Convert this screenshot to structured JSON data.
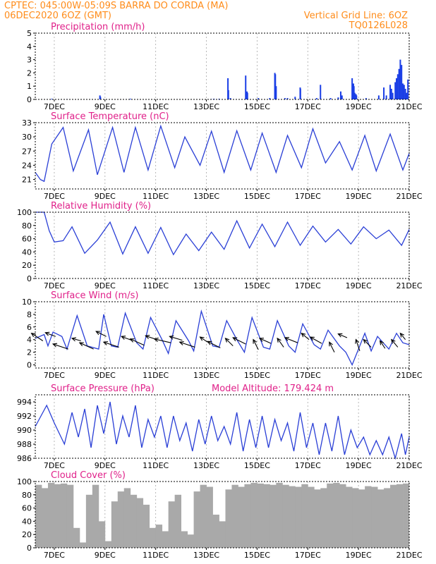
{
  "header": {
    "line1": "CPTEC:   045:00W-05:09S   BARRA DO CORDA (MA)",
    "line2_left": "06DEC2020 6OZ (GMT)",
    "line2_right": "Vertical Grid Line: 6OZ",
    "line3_right": "TQ0126L028"
  },
  "chart_data": [
    {
      "type": "bar",
      "title": "Precipitation (mm/h)",
      "ylim": [
        0,
        5
      ],
      "yticks": [
        0,
        1,
        2,
        3,
        4,
        5
      ],
      "xticks": [
        "7DEC",
        "9DEC",
        "11DEC",
        "13DEC",
        "15DEC",
        "17DEC",
        "19DEC",
        "21DEC"
      ],
      "xtick_days": [
        7,
        9,
        11,
        13,
        15,
        17,
        19,
        21
      ],
      "xrange_days": [
        6.25,
        21.0
      ],
      "color": "#1a3ee6",
      "x": [
        6.9,
        7.5,
        8.8,
        8.82,
        10.0,
        12.4,
        13.2,
        13.3,
        13.5,
        13.85,
        13.87,
        13.95,
        14.55,
        14.6,
        14.62,
        15.05,
        15.5,
        15.7,
        15.72,
        15.75,
        16.1,
        16.2,
        16.5,
        16.7,
        16.71,
        17.35,
        17.5,
        17.9,
        18.2,
        18.3,
        18.35,
        18.75,
        18.8,
        18.82,
        18.85,
        18.9,
        18.92,
        19.3,
        19.8,
        20.0,
        20.1,
        20.25,
        20.3,
        20.35,
        20.45,
        20.5,
        20.55,
        20.6,
        20.65,
        20.7,
        20.75,
        20.8,
        20.85,
        20.9,
        20.95
      ],
      "values": [
        0.05,
        0.03,
        0.3,
        0.2,
        0.05,
        0.02,
        0.03,
        0.05,
        0.05,
        1.6,
        0.7,
        0.1,
        1.8,
        0.6,
        0.5,
        0.1,
        0.1,
        2.0,
        1.9,
        1.0,
        0.1,
        0.1,
        0.2,
        0.9,
        0.8,
        0.1,
        1.1,
        0.1,
        0.15,
        0.6,
        0.3,
        1.6,
        1.2,
        1.0,
        0.5,
        0.4,
        0.3,
        0.1,
        0.3,
        0.9,
        0.3,
        1.1,
        0.8,
        0.5,
        1.3,
        1.6,
        1.9,
        2.3,
        3.0,
        2.6,
        1.2,
        1.1,
        0.8,
        0.5,
        1.5
      ]
    },
    {
      "type": "line",
      "title": "Surface Temperature (nC)",
      "ylim": [
        19.0,
        33.0
      ],
      "yticks": [
        21,
        24,
        27,
        30,
        33
      ],
      "xticks": [
        "7DEC",
        "9DEC",
        "11DEC",
        "13DEC",
        "15DEC",
        "17DEC",
        "19DEC",
        "21DEC"
      ],
      "xtick_days": [
        7,
        9,
        11,
        13,
        15,
        17,
        19,
        21
      ],
      "xrange_days": [
        6.25,
        21.0
      ],
      "color": "#2a3fd6",
      "x": [
        6.25,
        6.45,
        6.6,
        6.9,
        7.35,
        7.75,
        8.35,
        8.7,
        9.3,
        9.75,
        10.2,
        10.7,
        11.2,
        11.75,
        12.15,
        12.75,
        13.2,
        13.7,
        14.2,
        14.75,
        15.2,
        15.75,
        16.2,
        16.75,
        17.2,
        17.7,
        18.25,
        18.75,
        19.25,
        19.7,
        20.25,
        20.75,
        21.0
      ],
      "values": [
        22.5,
        21.0,
        20.6,
        28.5,
        32.0,
        22.8,
        31.5,
        22.0,
        32.0,
        22.5,
        32.0,
        23.0,
        32.3,
        23.5,
        30.0,
        24.0,
        31.2,
        22.5,
        31.3,
        23.0,
        30.8,
        22.5,
        30.3,
        23.5,
        31.7,
        24.5,
        29.0,
        23.0,
        30.3,
        22.8,
        30.6,
        23.0,
        26.5
      ]
    },
    {
      "type": "line",
      "title": "Relative Humidity (%)",
      "ylim": [
        0,
        100
      ],
      "yticks": [
        0,
        20,
        40,
        60,
        80,
        100
      ],
      "xticks": [
        "7DEC",
        "9DEC",
        "11DEC",
        "13DEC",
        "15DEC",
        "17DEC",
        "19DEC",
        "21DEC"
      ],
      "xtick_days": [
        7,
        9,
        11,
        13,
        15,
        17,
        19,
        21
      ],
      "xrange_days": [
        6.25,
        21.0
      ],
      "color": "#2a3fd6",
      "x": [
        6.25,
        6.6,
        6.8,
        7.0,
        7.35,
        7.7,
        8.2,
        8.7,
        9.2,
        9.7,
        10.2,
        10.7,
        11.2,
        11.7,
        12.2,
        12.7,
        13.2,
        13.7,
        14.2,
        14.7,
        15.2,
        15.7,
        16.2,
        16.7,
        17.2,
        17.7,
        18.2,
        18.7,
        19.2,
        19.7,
        20.2,
        20.7,
        21.0
      ],
      "values": [
        100,
        100,
        72,
        55,
        57,
        78,
        38,
        58,
        85,
        37,
        78,
        38,
        77,
        36,
        67,
        42,
        70,
        44,
        87,
        46,
        82,
        48,
        85,
        50,
        79,
        55,
        74,
        52,
        78,
        60,
        73,
        50,
        74
      ]
    },
    {
      "type": "line",
      "title": "Surface Wind (m/s)",
      "ylim": [
        -0.5,
        10
      ],
      "yticks": [
        0,
        2,
        4,
        6,
        8,
        10
      ],
      "xticks": [
        "7DEC",
        "9DEC",
        "11DEC",
        "13DEC",
        "15DEC",
        "17DEC",
        "19DEC",
        "21DEC"
      ],
      "xtick_days": [
        7,
        9,
        11,
        13,
        15,
        17,
        19,
        21
      ],
      "xrange_days": [
        6.25,
        21.0
      ],
      "color": "#2a3fd6",
      "x": [
        6.25,
        6.6,
        6.75,
        6.95,
        7.3,
        7.5,
        7.9,
        8.3,
        8.75,
        8.95,
        9.25,
        9.5,
        9.8,
        10.25,
        10.5,
        10.8,
        11.25,
        11.5,
        11.8,
        12.3,
        12.5,
        12.8,
        13.25,
        13.5,
        13.8,
        14.2,
        14.5,
        14.8,
        15.25,
        15.5,
        15.8,
        16.25,
        16.5,
        16.8,
        17.25,
        17.5,
        17.8,
        18.25,
        18.5,
        18.75,
        19.25,
        19.5,
        19.75,
        20.2,
        20.5,
        20.75,
        21.0
      ],
      "values": [
        4.2,
        4.8,
        3.0,
        5.2,
        4.5,
        2.5,
        7.8,
        3.0,
        2.5,
        8.0,
        3.0,
        2.8,
        8.2,
        3.5,
        2.5,
        7.5,
        4.0,
        1.8,
        7.0,
        3.8,
        2.2,
        8.5,
        3.0,
        2.8,
        7.0,
        4.0,
        2.0,
        7.5,
        2.8,
        2.5,
        7.0,
        3.0,
        2.0,
        6.5,
        3.2,
        2.5,
        5.5,
        3.0,
        2.0,
        0.0,
        5.0,
        2.2,
        4.5,
        2.5,
        5.0,
        3.5,
        3.2
      ],
      "vectors": {
        "x": [
          6.55,
          7.05,
          7.55,
          8.05,
          8.55,
          9.05,
          9.55,
          10.05,
          10.55,
          11.05,
          11.6,
          12.05,
          12.55,
          13.05,
          13.55,
          14.05,
          14.55,
          15.05,
          15.55,
          16.05,
          16.6,
          17.05,
          17.55,
          18.05,
          18.55,
          19.05,
          19.5,
          20.05,
          20.55,
          20.85
        ],
        "y": [
          3.8,
          4.5,
          2.5,
          3.8,
          2.5,
          4.5,
          2.8,
          3.9,
          3.1,
          4.0,
          3.5,
          3.9,
          2.8,
          3.6,
          2.7,
          3.0,
          3.3,
          2.4,
          3.4,
          2.8,
          3.5,
          4.0,
          3.4,
          2.0,
          4.3,
          2.2,
          2.8,
          2.6,
          2.8,
          4.0
        ],
        "u": [
          -0.9,
          -0.8,
          -1.2,
          -0.7,
          -1.1,
          -0.8,
          -1.2,
          -0.8,
          -1.1,
          -0.9,
          -1.3,
          -1.0,
          -1.2,
          -0.6,
          -1.0,
          -0.6,
          -1.0,
          -0.4,
          -0.9,
          -0.5,
          -1.0,
          -0.6,
          -0.9,
          -0.4,
          -0.7,
          -0.3,
          -0.6,
          -0.4,
          -0.5,
          -0.4
        ],
        "v": [
          0.6,
          0.3,
          0.4,
          0.2,
          0.5,
          0.4,
          0.4,
          0.3,
          0.5,
          0.3,
          0.3,
          0.3,
          0.4,
          0.4,
          0.5,
          0.6,
          0.5,
          0.8,
          0.4,
          0.7,
          0.4,
          0.5,
          0.5,
          0.8,
          0.3,
          0.9,
          0.6,
          0.6,
          0.6,
          0.5
        ]
      }
    },
    {
      "type": "line",
      "title": "Surface Pressure (hPa)",
      "annotation": "Model Altitude: 179.424 m",
      "ylim": [
        986,
        995
      ],
      "yticks": [
        986,
        988,
        990,
        992,
        994
      ],
      "xticks": [
        "7DEC",
        "9DEC",
        "11DEC",
        "13DEC",
        "15DEC",
        "17DEC",
        "19DEC",
        "21DEC"
      ],
      "xtick_days": [
        7,
        9,
        11,
        13,
        15,
        17,
        19,
        21
      ],
      "xrange_days": [
        6.25,
        21.0
      ],
      "color": "#2a3fd6",
      "x": [
        6.25,
        6.4,
        6.7,
        7.0,
        7.4,
        7.7,
        7.95,
        8.2,
        8.45,
        8.7,
        8.95,
        9.2,
        9.45,
        9.7,
        9.95,
        10.2,
        10.45,
        10.7,
        10.95,
        11.2,
        11.45,
        11.7,
        11.95,
        12.2,
        12.45,
        12.7,
        12.95,
        13.2,
        13.45,
        13.7,
        13.95,
        14.2,
        14.45,
        14.7,
        14.95,
        15.2,
        15.45,
        15.7,
        15.95,
        16.2,
        16.45,
        16.7,
        16.95,
        17.2,
        17.45,
        17.7,
        17.95,
        18.2,
        18.45,
        18.7,
        18.95,
        19.2,
        19.45,
        19.7,
        19.95,
        20.2,
        20.45,
        20.7,
        20.85,
        21.0
      ],
      "values": [
        990.5,
        991.5,
        993.5,
        991.0,
        988.0,
        992.5,
        989.0,
        993.0,
        987.5,
        993.5,
        989.5,
        994.0,
        988.0,
        992.0,
        989.0,
        993.5,
        987.5,
        991.5,
        989.0,
        992.0,
        987.5,
        992.0,
        988.5,
        991.0,
        987.0,
        991.5,
        988.0,
        992.0,
        988.5,
        990.5,
        988.0,
        992.5,
        987.0,
        991.5,
        987.5,
        992.0,
        987.5,
        991.5,
        988.5,
        991.0,
        987.0,
        992.5,
        987.5,
        991.0,
        986.5,
        991.0,
        987.0,
        992.0,
        986.5,
        990.0,
        987.5,
        989.0,
        986.5,
        988.5,
        986.5,
        989.0,
        986.0,
        989.5,
        986.5,
        989.0
      ]
    },
    {
      "type": "bar",
      "title": "Cloud Cover (%)",
      "ylim": [
        0,
        100
      ],
      "yticks": [
        0,
        20,
        40,
        60,
        80,
        100
      ],
      "xticks": [
        "7DEC",
        "9DEC",
        "11DEC",
        "13DEC",
        "15DEC",
        "17DEC",
        "19DEC",
        "21DEC"
      ],
      "xtick_days": [
        7,
        9,
        11,
        13,
        15,
        17,
        19,
        21
      ],
      "xrange_days": [
        6.25,
        21.0
      ],
      "color": "#a9a9a9",
      "x": [
        6.25,
        6.5,
        6.75,
        7.0,
        7.25,
        7.5,
        7.75,
        8.0,
        8.25,
        8.5,
        8.75,
        9.0,
        9.25,
        9.5,
        9.75,
        10.0,
        10.25,
        10.5,
        10.75,
        11.0,
        11.25,
        11.5,
        11.75,
        12.0,
        12.25,
        12.5,
        12.75,
        13.0,
        13.25,
        13.5,
        13.75,
        14.0,
        14.25,
        14.5,
        14.75,
        15.0,
        15.25,
        15.5,
        15.75,
        16.0,
        16.25,
        16.5,
        16.75,
        17.0,
        17.25,
        17.5,
        17.75,
        18.0,
        18.25,
        18.5,
        18.75,
        19.0,
        19.25,
        19.5,
        19.75,
        20.0,
        20.25,
        20.5,
        20.75,
        21.0
      ],
      "values": [
        95,
        90,
        98,
        96,
        97,
        95,
        30,
        8,
        80,
        95,
        40,
        10,
        70,
        85,
        90,
        80,
        75,
        65,
        30,
        35,
        25,
        70,
        80,
        25,
        20,
        85,
        95,
        92,
        50,
        40,
        88,
        95,
        92,
        96,
        98,
        97,
        96,
        95,
        98,
        95,
        93,
        92,
        96,
        92,
        88,
        90,
        97,
        98,
        96,
        92,
        90,
        88,
        93,
        92,
        88,
        90,
        95,
        96,
        97,
        95
      ]
    }
  ]
}
